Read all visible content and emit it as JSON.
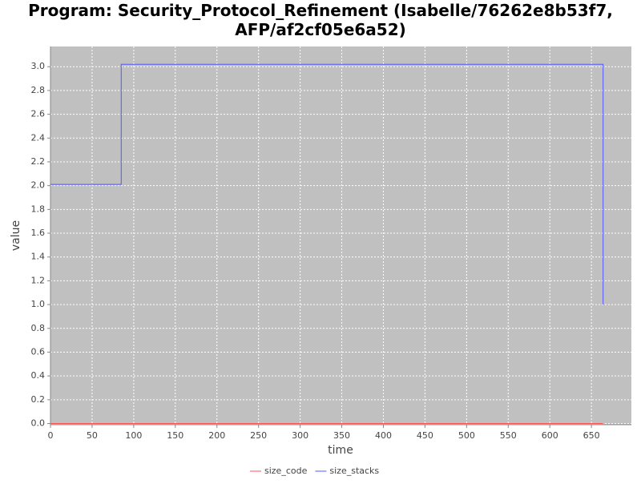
{
  "chart_data": {
    "type": "line",
    "title": "Program: Security_Protocol_Refinement (Isabelle/76262e8b53f7, AFP/af2cf05e6a52)",
    "x_label": "time",
    "y_label": "value",
    "series": [
      {
        "name": "size_code",
        "color": "#ff5555",
        "x": [
          0,
          664
        ],
        "values": [
          0,
          0
        ]
      },
      {
        "name": "size_stacks",
        "color": "#5555ff",
        "x": [
          0,
          85,
          85,
          664,
          664
        ],
        "values": [
          2.01,
          2.01,
          3.02,
          3.02,
          1.0
        ]
      }
    ],
    "xlim": [
      0,
      698
    ],
    "ylim": [
      -0.01,
      3.17
    ],
    "xticks": [
      0,
      50,
      100,
      150,
      200,
      250,
      300,
      350,
      400,
      450,
      500,
      550,
      600,
      650
    ],
    "yticks": [
      {
        "value": 0,
        "label": "0.0"
      },
      0.2,
      0.4,
      0.6,
      0.8,
      {
        "value": 1,
        "label": "1.0"
      },
      1.2,
      1.4,
      1.6,
      1.8,
      {
        "value": 2,
        "label": "2.0"
      },
      2.2,
      2.4,
      2.6,
      2.8,
      {
        "value": 3,
        "label": "3.0"
      }
    ],
    "grid": true,
    "legend": "bottom"
  }
}
